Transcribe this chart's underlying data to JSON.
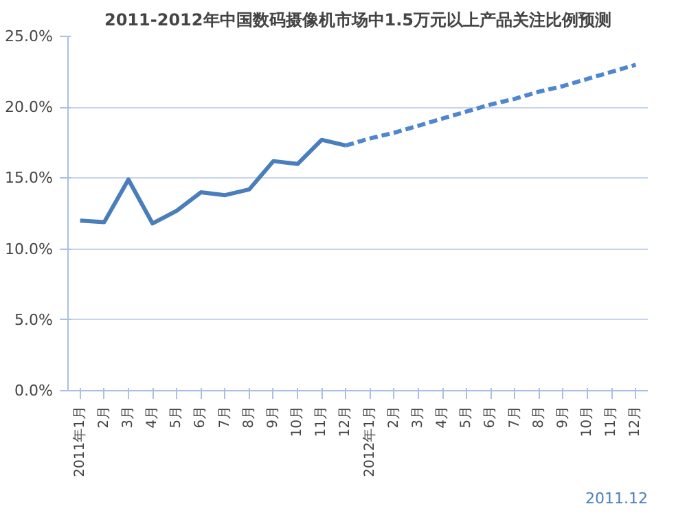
{
  "chart_data": {
    "type": "line",
    "title": "2011-2012年中国数码摄像机市场中1.5万元以上产品关注比例预测",
    "categories": [
      "2011年1月",
      "2月",
      "3月",
      "4月",
      "5月",
      "6月",
      "7月",
      "8月",
      "9月",
      "10月",
      "11月",
      "12月",
      "2012年1月",
      "2月",
      "3月",
      "4月",
      "5月",
      "6月",
      "7月",
      "8月",
      "9月",
      "10月",
      "11月",
      "12月"
    ],
    "series": [
      {
        "color": "#4a7ebb",
        "line_style": "solid",
        "values": [
          12.0,
          11.9,
          14.9,
          11.8,
          12.7,
          14.0,
          13.8,
          14.2,
          16.2,
          16.0,
          17.7,
          17.3,
          null,
          null,
          null,
          null,
          null,
          null,
          null,
          null,
          null,
          null,
          null,
          null
        ]
      },
      {
        "color": "#4f86d0",
        "line_style": "dashed",
        "values": [
          null,
          null,
          null,
          null,
          null,
          null,
          null,
          null,
          null,
          null,
          null,
          17.3,
          17.8,
          18.2,
          18.7,
          19.2,
          19.7,
          20.2,
          20.6,
          21.1,
          21.5,
          22.0,
          22.5,
          23.0
        ]
      }
    ],
    "ylim": [
      0,
      25
    ],
    "yticks": [
      {
        "value": 0,
        "label": "0.0%"
      },
      {
        "value": 5,
        "label": "5.0%"
      },
      {
        "value": 10,
        "label": "10.0%"
      },
      {
        "value": 15,
        "label": "15.0%"
      },
      {
        "value": 20,
        "label": "20.0%"
      },
      {
        "value": 25,
        "label": "25.0%"
      }
    ],
    "grid": "y",
    "marker": "none",
    "annotations": [
      "2011.12"
    ]
  }
}
